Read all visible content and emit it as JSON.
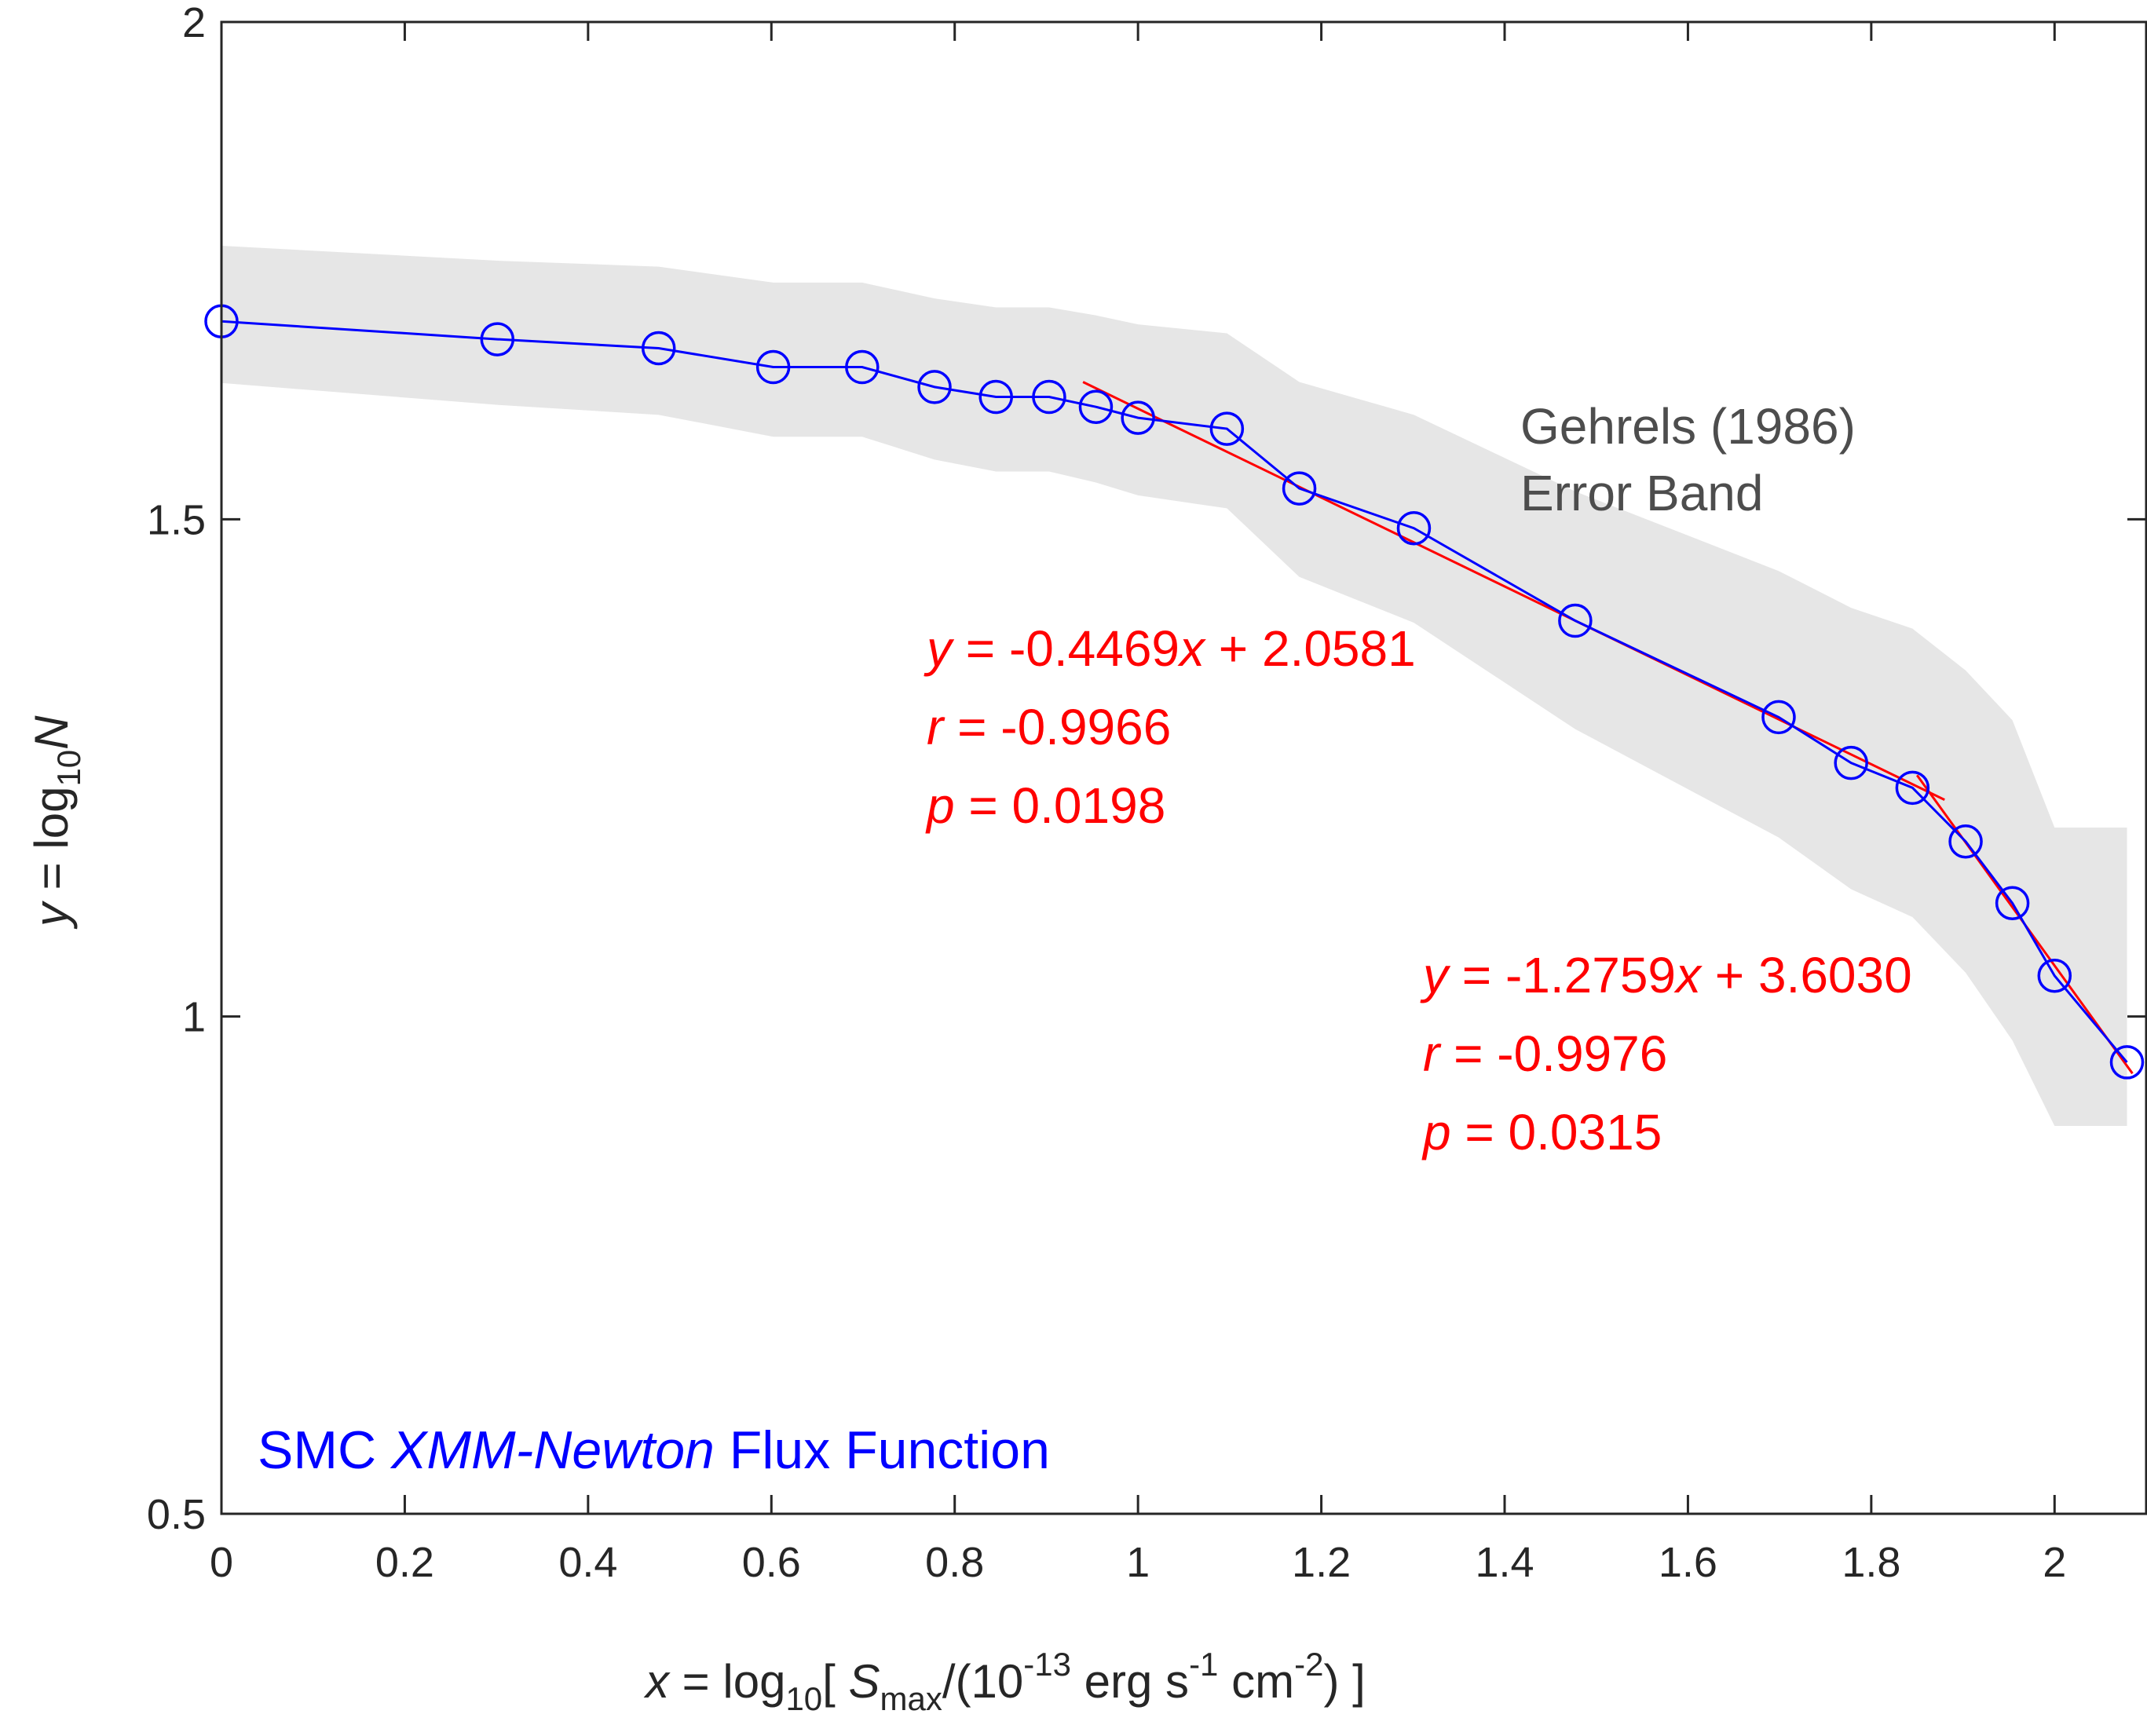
{
  "chart_data": {
    "type": "line",
    "x": [
      0,
      0.301,
      0.477,
      0.602,
      0.699,
      0.778,
      0.845,
      0.903,
      0.954,
      1.0,
      1.097,
      1.176,
      1.301,
      1.477,
      1.699,
      1.778,
      1.845,
      1.903,
      1.954,
      2.0,
      2.079
    ],
    "series": [
      {
        "name": "SMC XMM-Newton Flux Function",
        "color": "#0000ff",
        "marker": "circle",
        "y": [
          1.699,
          1.681,
          1.672,
          1.653,
          1.653,
          1.633,
          1.623,
          1.623,
          1.613,
          1.602,
          1.591,
          1.531,
          1.491,
          1.398,
          1.301,
          1.255,
          1.23,
          1.176,
          1.114,
          1.041,
          0.954
        ]
      }
    ],
    "error_band": {
      "name": "Gehrels (1986) Error Band",
      "color": "#e6e6e6",
      "x": [
        0,
        0.301,
        0.477,
        0.602,
        0.699,
        0.778,
        0.845,
        0.903,
        0.954,
        1.0,
        1.097,
        1.176,
        1.301,
        1.477,
        1.699,
        1.778,
        1.845,
        1.903,
        1.954,
        2.0,
        2.079
      ],
      "upper": [
        1.775,
        1.76,
        1.754,
        1.738,
        1.738,
        1.722,
        1.713,
        1.713,
        1.705,
        1.696,
        1.687,
        1.638,
        1.605,
        1.528,
        1.448,
        1.411,
        1.39,
        1.348,
        1.298,
        1.19,
        1.19
      ],
      "lower": [
        1.637,
        1.615,
        1.605,
        1.583,
        1.583,
        1.56,
        1.548,
        1.548,
        1.537,
        1.524,
        1.511,
        1.442,
        1.396,
        1.289,
        1.18,
        1.128,
        1.1,
        1.044,
        0.976,
        0.89,
        0.89
      ]
    },
    "fits": [
      {
        "slope": -0.4469,
        "intercept": 2.0581,
        "x_range": [
          0.94,
          1.88
        ],
        "color": "#ff0000",
        "labels": [
          "y = -0.4469 x + 2.0581",
          "r = -0.9966",
          "p = 0.0198"
        ]
      },
      {
        "slope": -1.2759,
        "intercept": 3.603,
        "x_range": [
          1.85,
          2.085
        ],
        "color": "#ff0000",
        "labels": [
          "y = -1.2759 x + 3.6030",
          "r = -0.9976",
          "p = 0.0315"
        ]
      }
    ],
    "xlim": [
      0,
      2.1
    ],
    "ylim": [
      0.5,
      2
    ],
    "xticks": [
      0,
      0.2,
      0.4,
      0.6,
      0.8,
      1,
      1.2,
      1.4,
      1.6,
      1.8,
      2
    ],
    "xtick_labels": [
      "0",
      "0.2",
      "0.4",
      "0.6",
      "0.8",
      "1",
      "1.2",
      "1.4",
      "1.6",
      "1.8",
      "2"
    ],
    "yticks": [
      0.5,
      1,
      1.5,
      2
    ],
    "ytick_labels": [
      "0.5",
      "1",
      "1.5",
      "2"
    ],
    "xlabel": "x = log10[ Smax/(10-13 erg s-1 cm-2) ]",
    "ylabel": "y = log10N",
    "annotations": {
      "band_label_1": "Gehrels (1986)",
      "band_label_2": "Error Band",
      "series_label_pre": "SMC ",
      "series_label_it": "XMM-Newton",
      "series_label_post": " Flux Function"
    },
    "xlabel_parts": {
      "x": "x",
      "eq": " = log",
      "sub10": "10",
      "br": "[ ",
      "S": "S",
      "max": "max",
      "mid": "/(10",
      "exp13": "-13",
      "erg": " erg s",
      "exp1": "-1",
      "cm": " cm",
      "exp2": "-2",
      "end": ") ]"
    },
    "ylabel_parts": {
      "y": "y",
      "eq": " = log",
      "sub10": "10",
      "N": "N"
    },
    "fit1_parts": {
      "y": "y",
      "eq": " = -0.4469",
      "x": "x",
      "rest": " + 2.0581",
      "r": "r",
      "rval": " = -0.9966",
      "p": "p",
      "pval": " = 0.0198"
    },
    "fit2_parts": {
      "y": "y",
      "eq": " = -1.2759",
      "x": "x",
      "rest": " + 3.6030",
      "r": "r",
      "rval": " = -0.9976",
      "p": "p",
      "pval": " = 0.0315"
    }
  }
}
